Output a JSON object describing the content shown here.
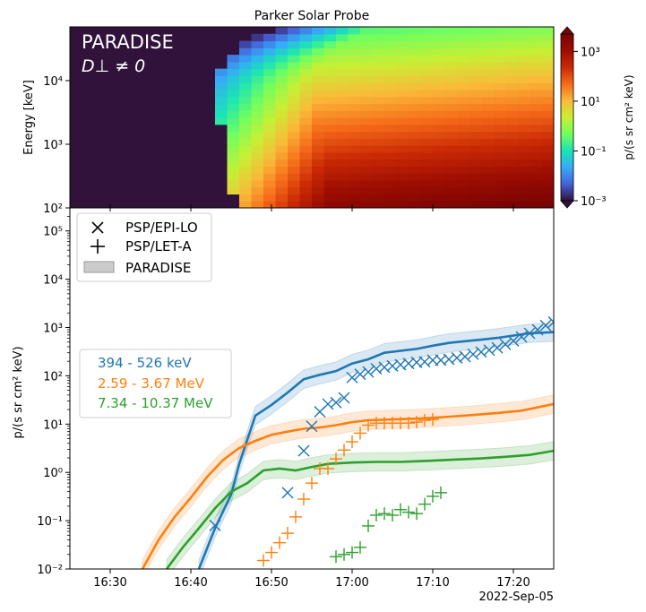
{
  "figure": {
    "title": "Parker Solar Probe",
    "date_label": "2022-Sep-05"
  },
  "chart_data": [
    {
      "type": "heatmap",
      "panel": "top",
      "title": "Parker Solar Probe",
      "model_label": "PARADISE",
      "model_sublabel": "D⊥ ≠ 0",
      "ylabel": "Energy [keV]",
      "yscale": "log",
      "ylim": [
        100,
        70000
      ],
      "xlim": [
        "16:25",
        "17:25"
      ],
      "y_ticks": [
        {
          "value": 100,
          "label": "10²"
        },
        {
          "value": 1000,
          "label": "10³"
        },
        {
          "value": 10000,
          "label": "10⁴"
        }
      ],
      "colorbar": {
        "label": "p/(s sr cm² keV)",
        "scale": "log",
        "range": [
          0.001,
          5000
        ],
        "ticks": [
          {
            "value": 0.001,
            "label": "10⁻³"
          },
          {
            "value": 0.1,
            "label": "10⁻¹"
          },
          {
            "value": 10,
            "label": "10¹"
          },
          {
            "value": 1000,
            "label": "10³"
          }
        ],
        "colormap": "turbo"
      },
      "background_color": "#30123b"
    },
    {
      "type": "line",
      "panel": "bottom",
      "ylabel": "p/(s sr cm² keV)",
      "yscale": "log",
      "ylim": [
        0.01,
        300000
      ],
      "xlim": [
        "16:25",
        "17:25"
      ],
      "x_ticks": [
        "16:30",
        "16:40",
        "16:50",
        "17:00",
        "17:10",
        "17:20"
      ],
      "y_ticks": [
        {
          "value": 0.01,
          "label": "10⁻²"
        },
        {
          "value": 0.1,
          "label": "10⁻¹"
        },
        {
          "value": 1,
          "label": "10⁰"
        },
        {
          "value": 10,
          "label": "10¹"
        },
        {
          "value": 100,
          "label": "10²"
        },
        {
          "value": 1000,
          "label": "10³"
        },
        {
          "value": 10000,
          "label": "10⁴"
        },
        {
          "value": 100000,
          "label": "10⁵"
        }
      ],
      "legend": {
        "placement": "top-left",
        "entries": [
          {
            "marker": "x",
            "label": "PSP/EPI-LO"
          },
          {
            "marker": "+",
            "label": "PSP/LET-A"
          },
          {
            "marker": "band",
            "label": "PARADISE"
          }
        ]
      },
      "series_legend": {
        "placement": "center-left",
        "entries": [
          "394 - 526 keV",
          "2.59 - 3.67 MeV",
          "7.34 - 10.37 MeV"
        ]
      },
      "series": [
        {
          "name": "394 - 526 keV",
          "color": "#1f77b4",
          "model": {
            "x": [
              "16:41",
              "16:43",
              "16:45",
              "16:46",
              "16:48",
              "16:50",
              "16:52",
              "16:54",
              "16:56",
              "16:58",
              "17:00",
              "17:02",
              "17:04",
              "17:06",
              "17:08",
              "17:10",
              "17:12",
              "17:14",
              "17:16",
              "17:18",
              "17:20",
              "17:22",
              "17:25"
            ],
            "y": [
              0.01,
              0.07,
              0.35,
              1.5,
              15,
              25,
              45,
              85,
              105,
              125,
              180,
              220,
              300,
              330,
              360,
              420,
              480,
              520,
              560,
              610,
              680,
              760,
              800
            ]
          },
          "epilo": {
            "x": [
              "16:43",
              "16:52",
              "16:54",
              "16:55",
              "16:56",
              "16:57",
              "16:58",
              "16:59",
              "17:00",
              "17:01",
              "17:02",
              "17:03",
              "17:04",
              "17:05",
              "17:06",
              "17:07",
              "17:08",
              "17:09",
              "17:10",
              "17:11",
              "17:12",
              "17:13",
              "17:14",
              "17:15",
              "17:16",
              "17:17",
              "17:18",
              "17:19",
              "17:20",
              "17:21",
              "17:22",
              "17:23",
              "17:24",
              "17:25"
            ],
            "y": [
              0.08,
              0.38,
              2.8,
              9,
              18,
              26,
              28,
              35,
              92,
              108,
              120,
              140,
              150,
              160,
              170,
              180,
              190,
              195,
              210,
              210,
              220,
              235,
              250,
              280,
              310,
              340,
              380,
              450,
              530,
              640,
              760,
              900,
              1100,
              1300
            ]
          }
        },
        {
          "name": "2.59 - 3.67 MeV",
          "color": "#ff7f0e",
          "model": {
            "x": [
              "16:34",
              "16:36",
              "16:38",
              "16:40",
              "16:42",
              "16:44",
              "16:46",
              "16:48",
              "16:50",
              "16:52",
              "16:54",
              "16:56",
              "16:58",
              "17:00",
              "17:02",
              "17:05",
              "17:08",
              "17:10",
              "17:14",
              "17:18",
              "17:21",
              "17:25"
            ],
            "y": [
              0.01,
              0.04,
              0.12,
              0.3,
              0.8,
              1.8,
              3.2,
              4.5,
              6,
              7,
              8,
              8.5,
              9.5,
              11,
              12,
              12.5,
              13,
              13.5,
              15,
              17,
              19,
              26
            ]
          },
          "letA": {
            "x": [
              "16:49",
              "16:50",
              "16:51",
              "16:52",
              "16:53",
              "16:54",
              "16:55",
              "16:56",
              "16:57",
              "16:58",
              "16:59",
              "17:00",
              "17:01",
              "17:02",
              "17:03",
              "17:04",
              "17:05",
              "17:06",
              "17:07",
              "17:08",
              "17:09",
              "17:10"
            ],
            "y": [
              0.015,
              0.022,
              0.035,
              0.055,
              0.12,
              0.28,
              0.6,
              1.2,
              1.2,
              1.9,
              2.9,
              4.3,
              6.5,
              9.5,
              10.5,
              10.5,
              10.5,
              10.5,
              10.5,
              11,
              12,
              12.5
            ]
          }
        },
        {
          "name": "7.34 - 10.37 MeV",
          "color": "#2ca02c",
          "model": {
            "x": [
              "16:37",
              "16:39",
              "16:41",
              "16:43",
              "16:45",
              "16:47",
              "16:49",
              "16:51",
              "16:53",
              "16:55",
              "16:57",
              "17:00",
              "17:03",
              "17:06",
              "17:08",
              "17:10",
              "17:13",
              "17:16",
              "17:19",
              "17:22",
              "17:25"
            ],
            "y": [
              0.01,
              0.028,
              0.07,
              0.18,
              0.4,
              0.6,
              1.1,
              1.2,
              1.1,
              1.3,
              1.5,
              1.6,
              1.65,
              1.65,
              1.7,
              1.75,
              1.85,
              1.95,
              2.1,
              2.3,
              2.8
            ]
          },
          "letA": {
            "x": [
              "16:58",
              "16:59",
              "17:00",
              "17:01",
              "17:02",
              "17:03",
              "17:04",
              "17:05",
              "17:06",
              "17:07",
              "17:08",
              "17:09",
              "17:10",
              "17:11"
            ],
            "y": [
              0.018,
              0.02,
              0.022,
              0.028,
              0.078,
              0.13,
              0.14,
              0.13,
              0.17,
              0.15,
              0.14,
              0.22,
              0.32,
              0.38
            ]
          }
        }
      ]
    }
  ]
}
